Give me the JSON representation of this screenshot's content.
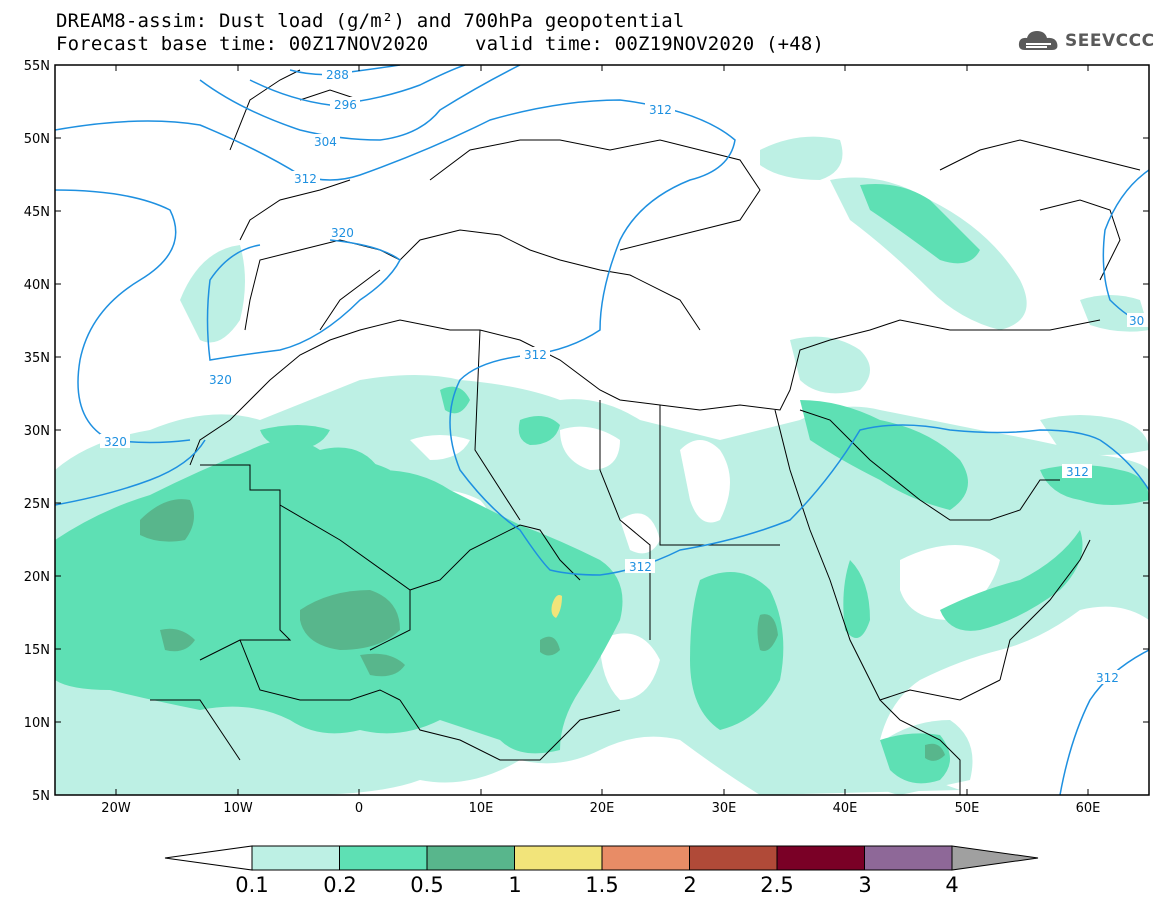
{
  "header": {
    "title_line1": "DREAM8-assim: Dust load (g/m²) and 700hPa geopotential",
    "title_line2_left": "Forecast base time: 00Z17NOV2020",
    "title_line2_right": "valid time: 00Z19NOV2020 (+48)"
  },
  "logo": {
    "text": "SEEVCCC",
    "icon": "cloud-icon"
  },
  "axes": {
    "lat_labels": [
      "55N",
      "50N",
      "45N",
      "40N",
      "35N",
      "30N",
      "25N",
      "20N",
      "15N",
      "10N",
      "5N"
    ],
    "lon_labels": [
      "20W",
      "10W",
      "0",
      "10E",
      "20E",
      "30E",
      "40E",
      "50E",
      "60E"
    ]
  },
  "contours": {
    "labels": [
      "288",
      "296",
      "304",
      "312",
      "312",
      "320",
      "320",
      "320",
      "312",
      "312",
      "312",
      "312",
      "30"
    ]
  },
  "colorbar": {
    "levels": [
      "0.1",
      "0.2",
      "0.5",
      "1",
      "1.5",
      "2",
      "2.5",
      "3",
      "4"
    ],
    "colors": [
      "#bdf0e4",
      "#5ee0b4",
      "#58b68c",
      "#f2e47a",
      "#e88c66",
      "#b04a38",
      "#7a0026",
      "#8e6898",
      "#a0a0a0"
    ]
  },
  "style": {
    "contour_color": "#1e90e0",
    "border_color": "#000000"
  }
}
